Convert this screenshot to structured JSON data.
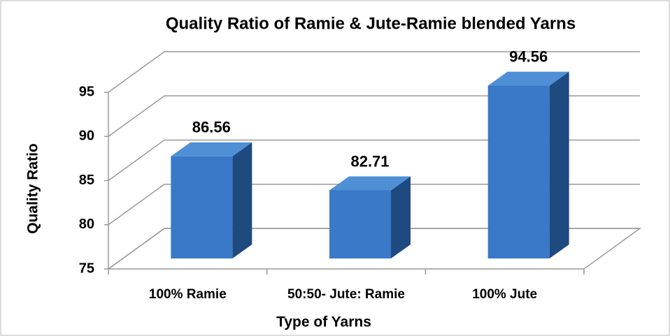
{
  "chart_data": {
    "type": "bar3d",
    "title": "Quality Ratio of Ramie & Jute-Ramie blended Yarns",
    "categories": [
      "100% Ramie",
      "50:50- Jute: Ramie",
      "100% Jute"
    ],
    "values": [
      86.56,
      82.71,
      94.56
    ],
    "color": "#3a78c8",
    "xlabel": "Type of Yarns",
    "ylabel": "Quality Ratio",
    "ylim": [
      75,
      95
    ],
    "yticks": [
      75,
      80,
      85,
      90,
      95
    ],
    "grid": true
  }
}
